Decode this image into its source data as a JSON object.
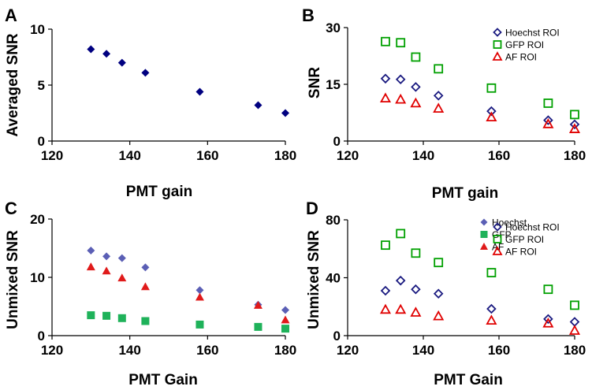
{
  "chart_data": [
    {
      "panel": "A",
      "type": "scatter",
      "xlabel": "PMT gain",
      "ylabel": "Averaged SNR",
      "xlim": [
        120,
        180
      ],
      "ylim": [
        0,
        10
      ],
      "xticks": [
        120,
        140,
        160,
        180
      ],
      "yticks": [
        0,
        5,
        10
      ],
      "legend": null,
      "series": [
        {
          "name": "",
          "marker": "diamond",
          "filled": true,
          "color": "#000080",
          "points": [
            [
              130,
              8.2
            ],
            [
              134,
              7.8
            ],
            [
              138,
              7.0
            ],
            [
              144,
              6.1
            ],
            [
              158,
              4.4
            ],
            [
              173,
              3.2
            ],
            [
              180,
              2.5
            ]
          ]
        }
      ]
    },
    {
      "panel": "B",
      "type": "scatter",
      "xlabel": "PMT gain",
      "ylabel": "SNR",
      "xlim": [
        120,
        180
      ],
      "ylim": [
        0,
        30
      ],
      "xticks": [
        120,
        140,
        160,
        180
      ],
      "yticks": [
        0,
        15,
        30
      ],
      "legend": "top-right",
      "series": [
        {
          "name": "Hoechst ROI",
          "marker": "diamond",
          "filled": false,
          "color": "#1a1a80",
          "points": [
            [
              130,
              16.5
            ],
            [
              134,
              16.3
            ],
            [
              138,
              14.3
            ],
            [
              144,
              12.0
            ],
            [
              158,
              7.9
            ],
            [
              173,
              5.5
            ],
            [
              180,
              4.4
            ]
          ]
        },
        {
          "name": "GFP ROI",
          "marker": "square",
          "filled": false,
          "color": "#00a000",
          "points": [
            [
              130,
              26.3
            ],
            [
              134,
              26.0
            ],
            [
              138,
              22.2
            ],
            [
              144,
              19.1
            ],
            [
              158,
              14.0
            ],
            [
              173,
              10.0
            ],
            [
              180,
              7.0
            ]
          ]
        },
        {
          "name": "AF ROI",
          "marker": "triangle",
          "filled": false,
          "color": "#e00000",
          "points": [
            [
              130,
              11.3
            ],
            [
              134,
              11.0
            ],
            [
              138,
              10.0
            ],
            [
              144,
              8.6
            ],
            [
              158,
              6.3
            ],
            [
              173,
              4.5
            ],
            [
              180,
              3.2
            ]
          ]
        }
      ]
    },
    {
      "panel": "C",
      "type": "scatter",
      "xlabel": "PMT Gain",
      "ylabel": "Unmixed SNR",
      "xlim": [
        120,
        180
      ],
      "ylim": [
        0,
        20
      ],
      "xticks": [
        120,
        140,
        160,
        180
      ],
      "yticks": [
        0,
        10,
        20
      ],
      "legend": "top-right",
      "series": [
        {
          "name": "Hoechst",
          "marker": "diamond",
          "filled": true,
          "color": "#5b5fb5",
          "points": [
            [
              130,
              14.6
            ],
            [
              134,
              13.6
            ],
            [
              138,
              13.3
            ],
            [
              144,
              11.7
            ],
            [
              158,
              7.8
            ],
            [
              173,
              5.3
            ],
            [
              180,
              4.4
            ]
          ]
        },
        {
          "name": "GFP",
          "marker": "square",
          "filled": true,
          "color": "#1fb25a",
          "points": [
            [
              130,
              3.5
            ],
            [
              134,
              3.4
            ],
            [
              138,
              3.0
            ],
            [
              144,
              2.5
            ],
            [
              158,
              1.9
            ],
            [
              173,
              1.5
            ],
            [
              180,
              1.2
            ]
          ]
        },
        {
          "name": "AF",
          "marker": "triangle",
          "filled": true,
          "color": "#e01a1a",
          "points": [
            [
              130,
              11.8
            ],
            [
              134,
              11.1
            ],
            [
              138,
              9.9
            ],
            [
              144,
              8.4
            ],
            [
              158,
              6.6
            ],
            [
              173,
              5.2
            ],
            [
              180,
              2.7
            ]
          ]
        }
      ]
    },
    {
      "panel": "D",
      "type": "scatter",
      "xlabel": "PMT Gain",
      "ylabel": "Unmixed SNR",
      "xlim": [
        120,
        180
      ],
      "ylim": [
        0,
        80
      ],
      "xticks": [
        120,
        140,
        160,
        180
      ],
      "yticks": [
        0,
        40,
        80
      ],
      "legend": "top-right",
      "series": [
        {
          "name": "Hoechst ROI",
          "marker": "diamond",
          "filled": false,
          "color": "#1a1a80",
          "points": [
            [
              130,
              31
            ],
            [
              134,
              38
            ],
            [
              138,
              32
            ],
            [
              144,
              29
            ],
            [
              158,
              18.5
            ],
            [
              173,
              11.5
            ],
            [
              180,
              9.5
            ]
          ]
        },
        {
          "name": "GFP ROI",
          "marker": "square",
          "filled": false,
          "color": "#00a000",
          "points": [
            [
              130,
              62.5
            ],
            [
              134,
              70.5
            ],
            [
              138,
              57
            ],
            [
              144,
              50.5
            ],
            [
              158,
              43.5
            ],
            [
              173,
              32
            ],
            [
              180,
              21
            ]
          ]
        },
        {
          "name": "AF ROI",
          "marker": "triangle",
          "filled": false,
          "color": "#e00000",
          "points": [
            [
              130,
              18
            ],
            [
              134,
              18
            ],
            [
              138,
              16
            ],
            [
              144,
              13.5
            ],
            [
              158,
              10.5
            ],
            [
              173,
              8.5
            ],
            [
              180,
              3.5
            ]
          ]
        }
      ]
    }
  ]
}
